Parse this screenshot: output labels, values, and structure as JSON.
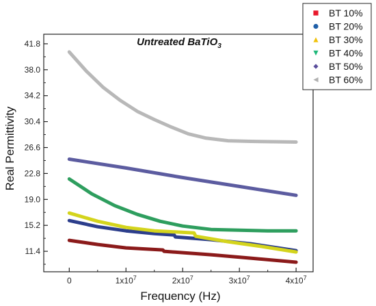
{
  "chart_data": {
    "type": "line",
    "title": "Untreated BaTiO",
    "title_subscript": "3",
    "xlabel": "Frequency (Hz)",
    "ylabel": "Real Permittivity",
    "xlim": [
      -4500000,
      43000000
    ],
    "ylim": [
      8.4,
      43.2
    ],
    "x_ticks": [
      {
        "value": 0,
        "label": "0"
      },
      {
        "value": 10000000,
        "label": "1x10",
        "exp": "7"
      },
      {
        "value": 20000000,
        "label": "2x10",
        "exp": "7"
      },
      {
        "value": 30000000,
        "label": "3x10",
        "exp": "7"
      },
      {
        "value": 40000000,
        "label": "4x10",
        "exp": "7"
      }
    ],
    "y_ticks": [
      {
        "value": 11.4,
        "label": "11.4"
      },
      {
        "value": 15.2,
        "label": "15.2"
      },
      {
        "value": 19.0,
        "label": "19.0"
      },
      {
        "value": 22.8,
        "label": "22.8"
      },
      {
        "value": 26.6,
        "label": "26.6"
      },
      {
        "value": 30.4,
        "label": "30.4"
      },
      {
        "value": 34.2,
        "label": "34.2"
      },
      {
        "value": 38.0,
        "label": "38.0"
      },
      {
        "value": 41.8,
        "label": "41.8"
      }
    ],
    "grid": false,
    "legend_position": "top-right",
    "series": [
      {
        "name": "BT 10%",
        "color": "#8b1a1a",
        "marker": "square",
        "marker_color": "#e8192c",
        "x": [
          0,
          5000000,
          10000000,
          16500000,
          16700000,
          25000000,
          32000000,
          40000000
        ],
        "y": [
          13.0,
          12.4,
          11.9,
          11.6,
          11.4,
          10.9,
          10.4,
          9.8
        ]
      },
      {
        "name": "BT 20%",
        "color": "#2c3e8c",
        "marker": "circle",
        "marker_color": "#1f5fa8",
        "x": [
          0,
          5000000,
          10000000,
          15000000,
          18500000,
          18700000,
          25000000,
          32000000,
          40000000
        ],
        "y": [
          15.9,
          15.0,
          14.4,
          14.0,
          13.8,
          13.5,
          13.1,
          12.5,
          11.5
        ]
      },
      {
        "name": "BT 30%",
        "color": "#d4d41c",
        "marker": "triangle",
        "marker_color": "#f0c20c",
        "x": [
          0,
          5000000,
          10000000,
          15000000,
          22000000,
          22300000,
          28000000,
          34000000,
          40000000
        ],
        "y": [
          17.0,
          15.8,
          14.9,
          14.4,
          14.1,
          13.6,
          12.8,
          12.1,
          11.3
        ]
      },
      {
        "name": "BT 40%",
        "color": "#2e9e5e",
        "marker": "triangle-down",
        "marker_color": "#1fb87a",
        "x": [
          0,
          4000000,
          8000000,
          12000000,
          16000000,
          20000000,
          25000000,
          30000000,
          35000000,
          40000000
        ],
        "y": [
          22.0,
          19.8,
          18.1,
          16.8,
          15.8,
          15.1,
          14.6,
          14.5,
          14.4,
          14.4
        ]
      },
      {
        "name": "BT 50%",
        "color": "#5c5ca0",
        "marker": "diamond",
        "marker_color": "#5a4d9c",
        "x": [
          0,
          10000000,
          20000000,
          30000000,
          40000000
        ],
        "y": [
          24.9,
          23.6,
          22.2,
          20.9,
          19.6
        ]
      },
      {
        "name": "BT 60%",
        "color": "#b8b8b8",
        "marker": "triangle-left",
        "marker_color": "#b0b0b0",
        "x": [
          0,
          3000000,
          6000000,
          9000000,
          12000000,
          15000000,
          18000000,
          21000000,
          24000000,
          28000000,
          32000000,
          36000000,
          40000000
        ],
        "y": [
          40.6,
          37.8,
          35.4,
          33.5,
          31.9,
          30.7,
          29.6,
          28.6,
          28.0,
          27.6,
          27.5,
          27.45,
          27.4
        ]
      }
    ]
  }
}
